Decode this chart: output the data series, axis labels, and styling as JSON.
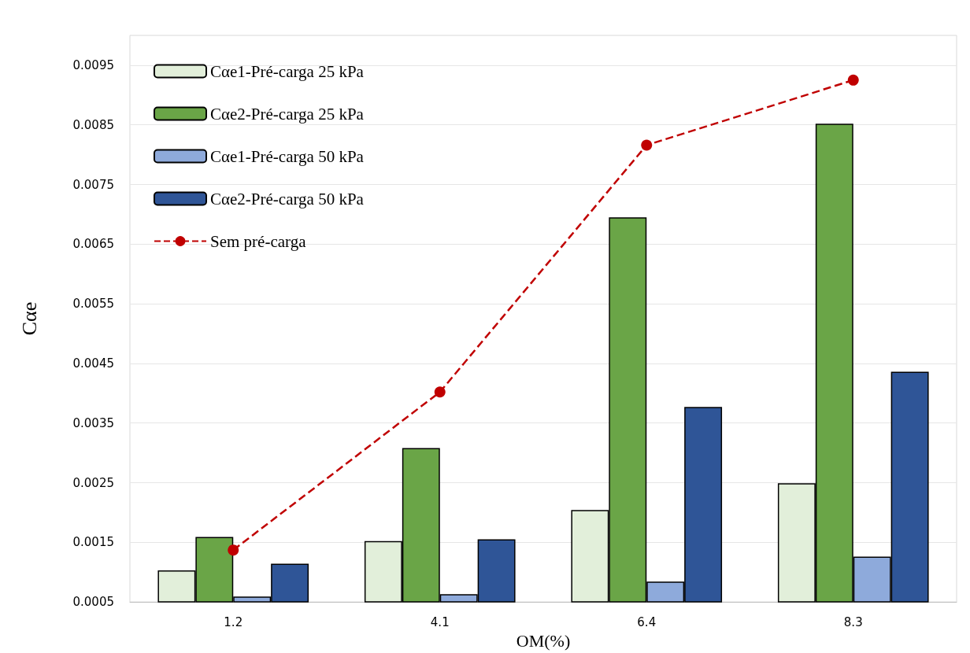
{
  "chart_data": {
    "type": "bar",
    "xlabel": "OM(%)",
    "ylabel": "Cαe",
    "categories": [
      "1.2",
      "4.1",
      "6.4",
      "8.3"
    ],
    "series": [
      {
        "name": "Cαe1-Pré-carga 25 kPa",
        "color": "#e2efda",
        "values": [
          0.00103,
          0.00152,
          0.00204,
          0.00249
        ]
      },
      {
        "name": "Cαe2-Pré-carga 25 kPa",
        "color": "#6aa547",
        "values": [
          0.00159,
          0.00308,
          0.00695,
          0.00852
        ]
      },
      {
        "name": "Cαe1-Pré-carga 50 kPa",
        "color": "#8eaadb",
        "values": [
          0.00059,
          0.00063,
          0.00084,
          0.00126
        ]
      },
      {
        "name": "Cαe2-Pré-carga 50 kPa",
        "color": "#2f5597",
        "values": [
          0.00114,
          0.00155,
          0.00377,
          0.00436
        ]
      },
      {
        "name": "Sem pré-carga",
        "type": "line",
        "color": "#c00000",
        "marker": "circle",
        "line_style": "dashed",
        "values": [
          0.00137,
          0.00402,
          0.00816,
          0.00925
        ]
      }
    ],
    "ylim": [
      0.0005,
      0.01
    ],
    "yticks": [
      0.0005,
      0.0015,
      0.0025,
      0.0035,
      0.0045,
      0.0055,
      0.0065,
      0.0075,
      0.0085,
      0.0095
    ],
    "grid": "y",
    "legend": "top left"
  }
}
